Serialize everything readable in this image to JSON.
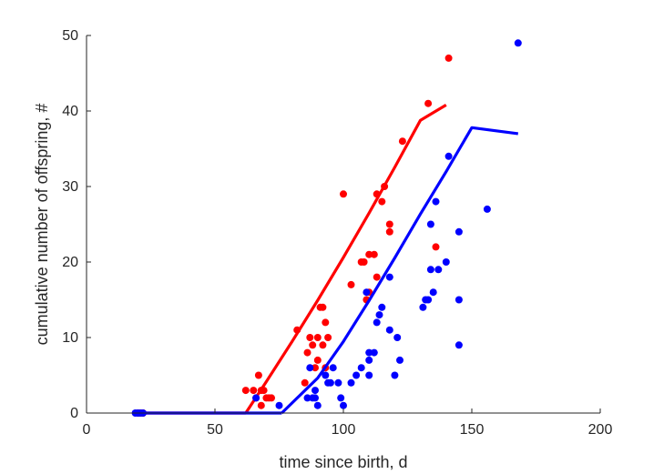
{
  "chart_data": {
    "type": "scatter",
    "title": "",
    "xlabel": "time since birth, d",
    "ylabel": "cumulative number of offspring, #",
    "xlim": [
      0,
      200
    ],
    "ylim": [
      0,
      50
    ],
    "xticks": [
      0,
      50,
      100,
      150,
      200
    ],
    "yticks": [
      0,
      10,
      20,
      30,
      40,
      50
    ],
    "grid": false,
    "legend": "none",
    "series": [
      {
        "color": "#ff0000",
        "marker": "circle",
        "points": [
          [
            20,
            0
          ],
          [
            21,
            0
          ],
          [
            22,
            0
          ],
          [
            62,
            3
          ],
          [
            65,
            3
          ],
          [
            66,
            2
          ],
          [
            67,
            5
          ],
          [
            68,
            3
          ],
          [
            69,
            3
          ],
          [
            70,
            2
          ],
          [
            71,
            2
          ],
          [
            72,
            2
          ],
          [
            68,
            1
          ],
          [
            82,
            11
          ],
          [
            85,
            4
          ],
          [
            86,
            8
          ],
          [
            87,
            10
          ],
          [
            88,
            9
          ],
          [
            89,
            6
          ],
          [
            90,
            10
          ],
          [
            90,
            7
          ],
          [
            91,
            14
          ],
          [
            92,
            9
          ],
          [
            92,
            14
          ],
          [
            93,
            12
          ],
          [
            93,
            6
          ],
          [
            94,
            10
          ],
          [
            100,
            29
          ],
          [
            103,
            17
          ],
          [
            107,
            20
          ],
          [
            108,
            20
          ],
          [
            109,
            15
          ],
          [
            110,
            21
          ],
          [
            110,
            16
          ],
          [
            112,
            21
          ],
          [
            113,
            29
          ],
          [
            113,
            18
          ],
          [
            115,
            28
          ],
          [
            116,
            30
          ],
          [
            118,
            24
          ],
          [
            118,
            25
          ],
          [
            123,
            36
          ],
          [
            133,
            41
          ],
          [
            136,
            22
          ],
          [
            141,
            47
          ]
        ],
        "curve": [
          [
            62,
            0
          ],
          [
            70,
            4.16
          ],
          [
            80,
            9.46
          ],
          [
            90,
            14.93
          ],
          [
            100,
            20.6
          ],
          [
            110,
            26.48
          ],
          [
            120,
            32.54
          ],
          [
            130,
            38.77
          ],
          [
            140,
            40.8
          ]
        ]
      },
      {
        "color": "#0000ff",
        "marker": "circle",
        "points": [
          [
            19,
            0
          ],
          [
            20,
            0
          ],
          [
            21,
            0
          ],
          [
            22,
            0
          ],
          [
            66,
            2
          ],
          [
            75,
            1
          ],
          [
            86,
            2
          ],
          [
            87,
            6
          ],
          [
            88,
            2
          ],
          [
            89,
            2
          ],
          [
            89,
            3
          ],
          [
            90,
            1
          ],
          [
            93,
            5
          ],
          [
            94,
            4
          ],
          [
            95,
            4
          ],
          [
            96,
            6
          ],
          [
            98,
            4
          ],
          [
            99,
            2
          ],
          [
            100,
            1
          ],
          [
            103,
            4
          ],
          [
            105,
            5
          ],
          [
            107,
            6
          ],
          [
            109,
            16
          ],
          [
            110,
            8
          ],
          [
            110,
            7
          ],
          [
            110,
            5
          ],
          [
            112,
            8
          ],
          [
            113,
            12
          ],
          [
            114,
            13
          ],
          [
            115,
            14
          ],
          [
            118,
            11
          ],
          [
            118,
            18
          ],
          [
            120,
            5
          ],
          [
            121,
            10
          ],
          [
            122,
            7
          ],
          [
            131,
            14
          ],
          [
            132,
            15
          ],
          [
            133,
            15
          ],
          [
            134,
            19
          ],
          [
            134,
            25
          ],
          [
            135,
            16
          ],
          [
            136,
            28
          ],
          [
            137,
            19
          ],
          [
            140,
            20
          ],
          [
            141,
            34
          ],
          [
            145,
            24
          ],
          [
            145,
            15
          ],
          [
            145,
            9
          ],
          [
            156,
            27
          ],
          [
            168,
            49
          ]
        ],
        "curve": [
          [
            76,
            0
          ],
          [
            90,
            4.64
          ],
          [
            100,
            9.47
          ],
          [
            110,
            14.89
          ],
          [
            120,
            20.54
          ],
          [
            130,
            26.36
          ],
          [
            140,
            31.96
          ],
          [
            150,
            37.8
          ],
          [
            168,
            37
          ]
        ]
      }
    ]
  }
}
